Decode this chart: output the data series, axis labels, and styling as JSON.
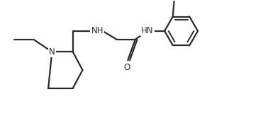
{
  "bg_color": "#ffffff",
  "line_color": "#2a2a2a",
  "line_width": 1.6,
  "font_size": 8.5,
  "figsize": [
    3.71,
    1.74
  ],
  "dpi": 100,
  "xlim": [
    0.0,
    10.5
  ],
  "ylim": [
    0.0,
    5.0
  ]
}
